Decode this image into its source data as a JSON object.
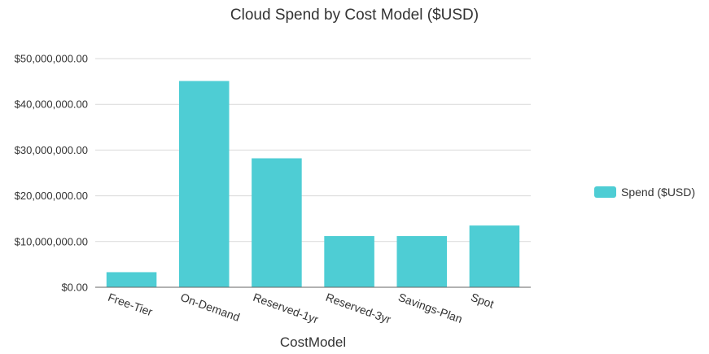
{
  "chart_data": {
    "type": "bar",
    "title": "Cloud Spend by Cost Model ($USD)",
    "xlabel": "CostModel",
    "ylabel": "",
    "categories": [
      "Free-Tier",
      "On-Demand",
      "Reserved-1yr",
      "Reserved-3yr",
      "Savings-Plan",
      "Spot"
    ],
    "series": [
      {
        "name": "Spend ($USD)",
        "color": "#4ecdd4",
        "values": [
          3300000,
          45100000,
          28200000,
          11200000,
          11200000,
          13500000
        ]
      }
    ],
    "ylim": [
      0,
      50000000
    ],
    "yticks": [
      0,
      10000000,
      20000000,
      30000000,
      40000000,
      50000000
    ],
    "ytick_labels": [
      "$0.00",
      "$10,000,000.00",
      "$20,000,000.00",
      "$30,000,000.00",
      "$40,000,000.00",
      "$50,000,000.00"
    ],
    "grid": true,
    "legend_position": "right"
  }
}
